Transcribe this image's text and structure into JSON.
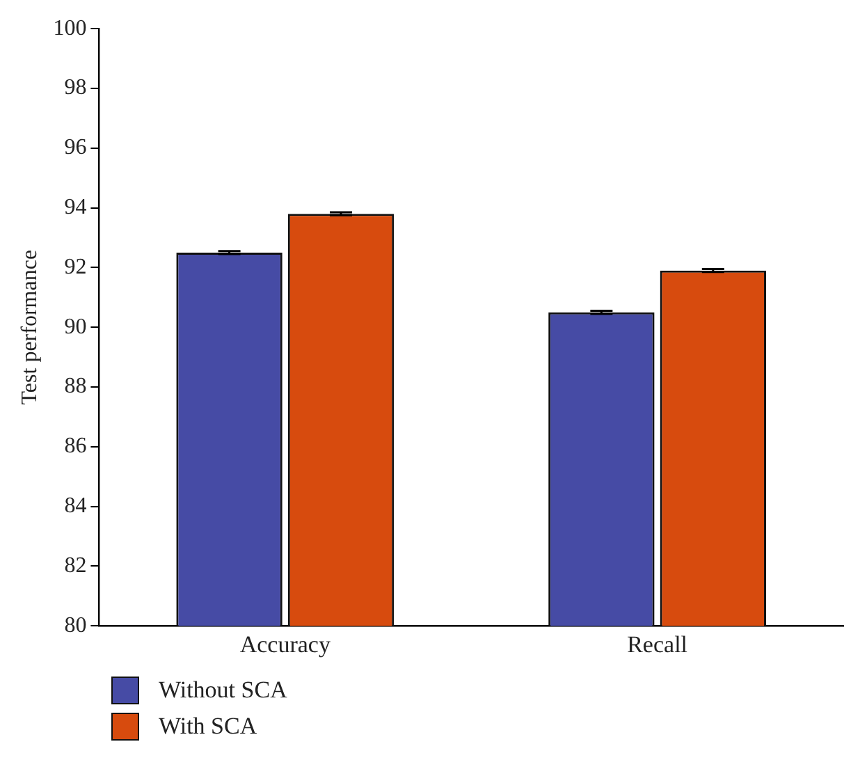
{
  "chart_data": {
    "type": "bar",
    "ylabel": "Test performance",
    "categories": [
      "Accuracy",
      "Recall"
    ],
    "series": [
      {
        "name": "Without SCA",
        "color": "#464ba5",
        "values": [
          92.5,
          90.5
        ],
        "errors": [
          0.05,
          0.05
        ]
      },
      {
        "name": "With SCA",
        "color": "#d74b0e",
        "values": [
          93.8,
          91.9
        ],
        "errors": [
          0.05,
          0.05
        ]
      }
    ],
    "ylim": [
      80,
      100
    ],
    "yticks": [
      80,
      82,
      84,
      86,
      88,
      90,
      92,
      94,
      96,
      98,
      100
    ],
    "grid": false,
    "legend": "bottom left"
  }
}
